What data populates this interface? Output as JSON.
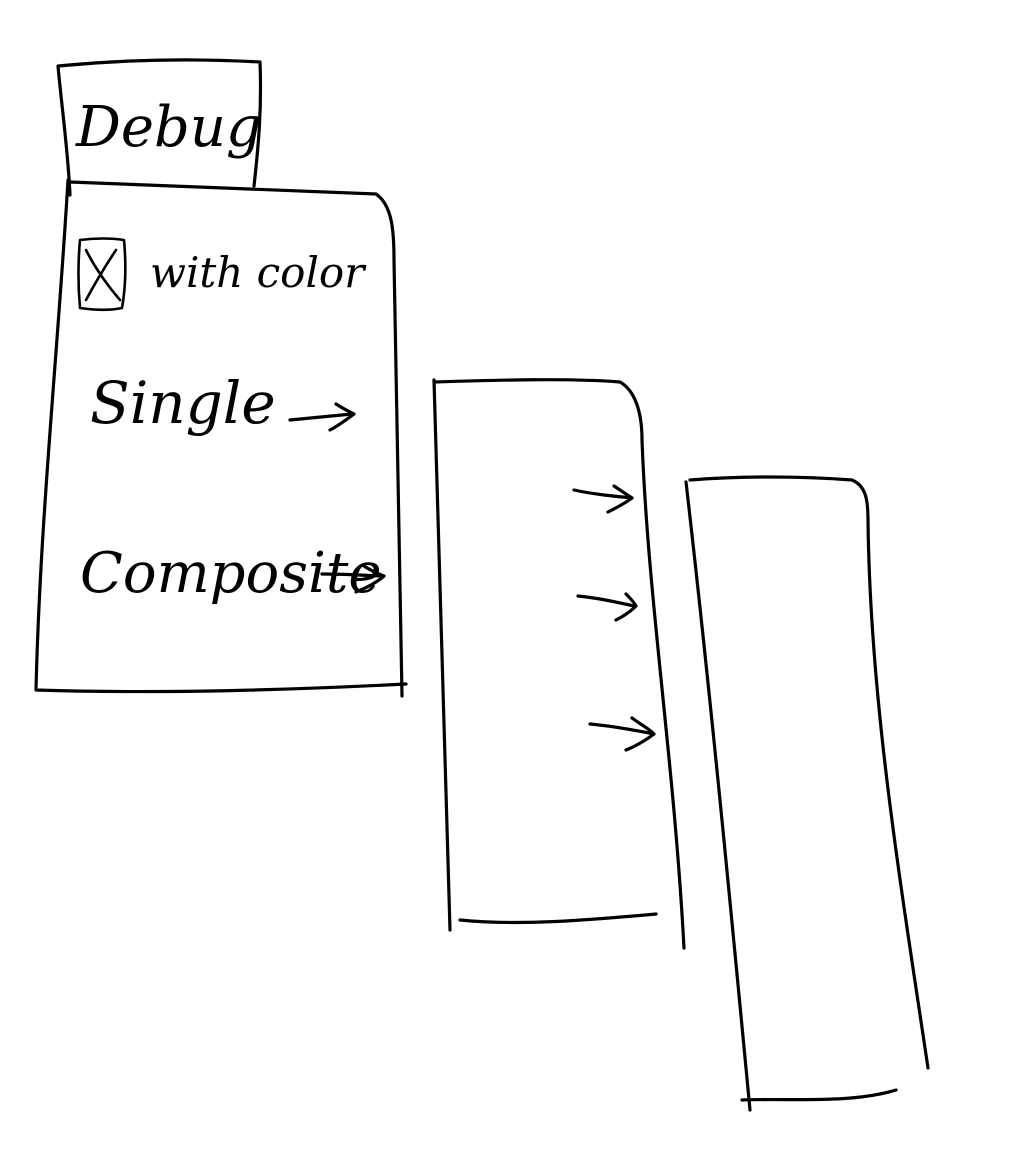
{
  "debug_menu": {
    "tab_label": "Debug",
    "checkbox": {
      "label": "with color",
      "checked": true
    },
    "items": [
      {
        "label": "Single",
        "has_submenu": true
      },
      {
        "label": "Composite",
        "has_submenu": true
      }
    ]
  },
  "submenu_1": {
    "arrow_items": 3
  },
  "submenu_2": {
    "items": []
  }
}
